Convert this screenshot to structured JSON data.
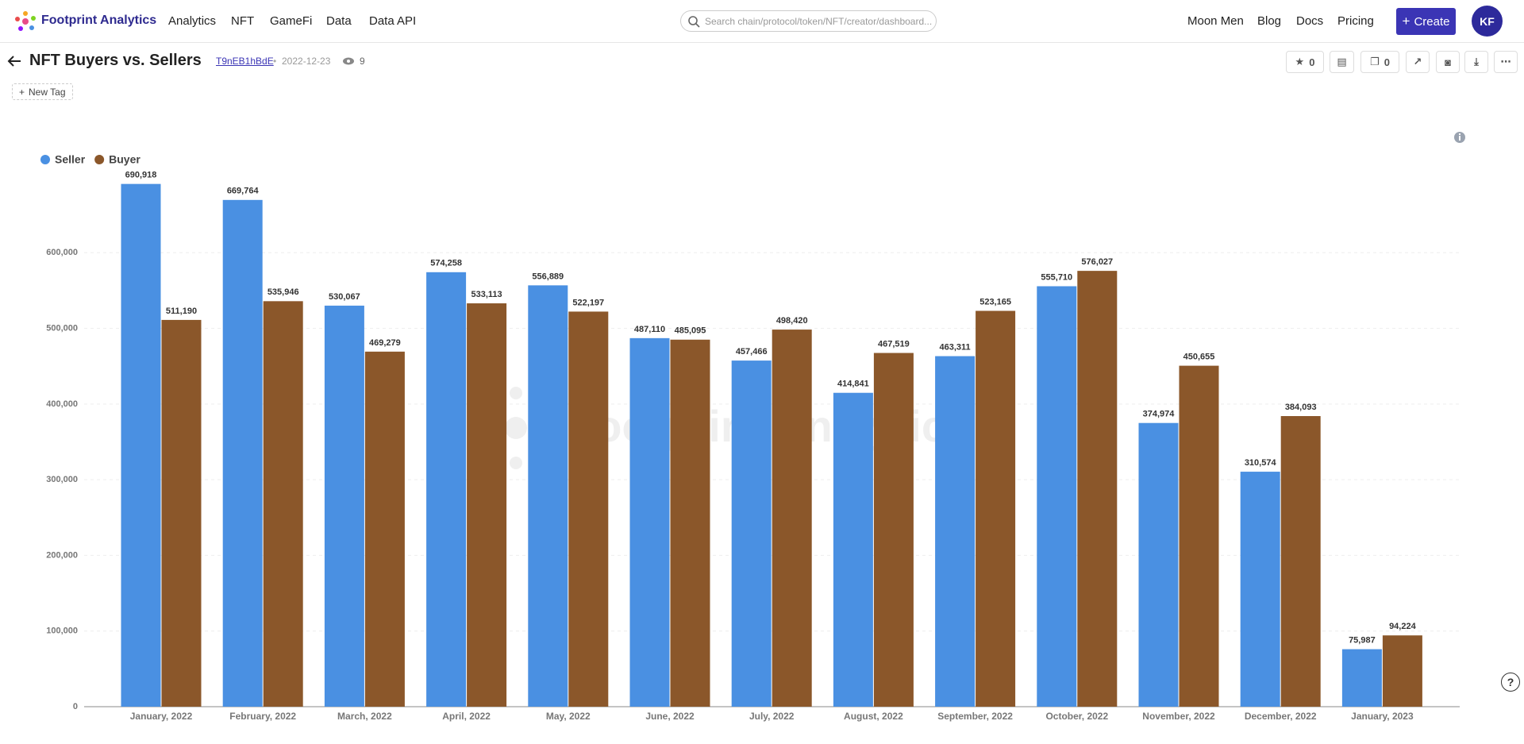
{
  "header": {
    "brand": "Footprint Analytics",
    "nav": [
      "Analytics",
      "NFT",
      "GameFi",
      "Data",
      "Data API"
    ],
    "search_placeholder": "Search chain/protocol/token/NFT/creator/dashboard...",
    "links": [
      "Moon Men",
      "Blog",
      "Docs",
      "Pricing"
    ],
    "create": "Create",
    "avatar": "KF"
  },
  "dashboard": {
    "title": "NFT Buyers vs. Sellers",
    "id": "T9nEB1hBdE",
    "date": "2022-12-23",
    "views": 9,
    "star_count": 0,
    "copy_count": 0,
    "new_tag": "New Tag",
    "watermark": "Footprint Analytics"
  },
  "chart_data": {
    "type": "bar",
    "categories": [
      "January, 2022",
      "February, 2022",
      "March, 2022",
      "April, 2022",
      "May, 2022",
      "June, 2022",
      "July, 2022",
      "August, 2022",
      "September, 2022",
      "October, 2022",
      "November, 2022",
      "December, 2022",
      "January, 2023"
    ],
    "series": [
      {
        "name": "Seller",
        "color": "#4a90e2",
        "values": [
          690918,
          669764,
          530067,
          574258,
          556889,
          487110,
          457466,
          414841,
          463311,
          555710,
          374974,
          310574,
          75987
        ],
        "value_labels": [
          "690,918",
          "669,764",
          "530,067",
          "574,258",
          "556,889",
          "487,110",
          "457,466",
          "414,841",
          "463,311",
          "555,710",
          "374,974",
          "310,574",
          "75,987"
        ]
      },
      {
        "name": "Buyer",
        "color": "#8b572a",
        "values": [
          511190,
          535946,
          469279,
          533113,
          522197,
          485095,
          498420,
          467519,
          523165,
          576027,
          450655,
          384093,
          94224
        ],
        "value_labels": [
          "511,190",
          "535,946",
          "469,279",
          "533,113",
          "522,197",
          "485,095",
          "498,420",
          "467,519",
          "523,165",
          "576,027",
          "450,655",
          "384,093",
          "94,224"
        ]
      }
    ],
    "ylim": [
      0,
      700000
    ],
    "yticks": [
      0,
      {
        "value": 100000,
        "label": "100,000"
      },
      {
        "value": 200000,
        "label": "200,000"
      },
      {
        "value": 300000,
        "label": "300,000"
      },
      {
        "value": 400000,
        "label": "400,000"
      },
      {
        "value": 500000,
        "label": "500,000"
      },
      {
        "value": 600000,
        "label": "600,000"
      }
    ],
    "grid": true,
    "legend": "top-left"
  }
}
